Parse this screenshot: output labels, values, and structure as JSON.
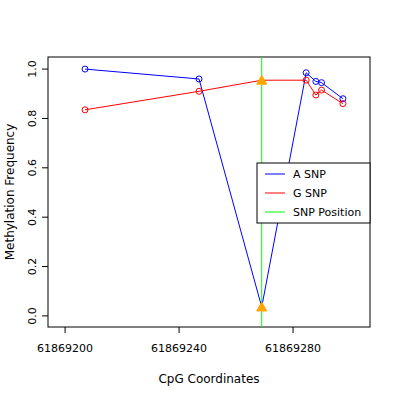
{
  "chart_data": {
    "type": "line",
    "x_label": "CpG Coordinates",
    "y_label": "Methylation Frequency",
    "xlim": [
      61869194,
      61869307
    ],
    "xticks": [
      61869200,
      61869240,
      61869280
    ],
    "ylim": [
      -0.045,
      1.049
    ],
    "yticks": [
      {
        "value": 0,
        "label": "0.0"
      },
      {
        "value": 0.2,
        "label": "0.2"
      },
      {
        "value": 0.4,
        "label": "0.4"
      },
      {
        "value": 0.6,
        "label": "0.6"
      },
      {
        "value": 0.8,
        "label": "0.8"
      },
      {
        "value": 1,
        "label": "1.0"
      }
    ],
    "x": [
      61869207,
      61869247,
      61869269,
      61869284.6,
      61869288,
      61869290,
      61869297.5
    ],
    "series": [
      {
        "name": "A SNP",
        "color": "#0000ff",
        "marker": "circle",
        "values": [
          1.0,
          0.96,
          0.036,
          0.985,
          0.95,
          0.945,
          0.88
        ]
      },
      {
        "name": "G SNP",
        "color": "#ff0000",
        "marker": "circle",
        "values": [
          0.835,
          0.91,
          0.955,
          0.955,
          0.895,
          0.915,
          0.86
        ]
      }
    ],
    "annotations": [
      {
        "x": 61869269,
        "label": "SNP Position",
        "color": "#00ff00",
        "marker": "triangle",
        "marker_color": "#ffa500"
      }
    ],
    "legend": "right",
    "grid": false
  }
}
